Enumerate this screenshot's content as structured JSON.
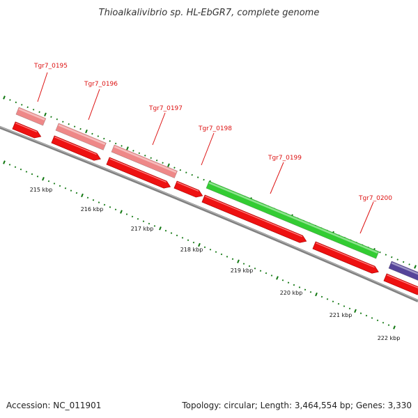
{
  "title": "Thioalkalivibrio sp. HL-EbGR7, complete genome",
  "footer": {
    "accession": "Accession: NC_011901",
    "summary": "Topology: circular; Length: 3,464,554 bp; Genes: 3,330"
  },
  "colors": {
    "gene_label": "#dd1111",
    "cds_red": "#ee1111",
    "feature_pink": "#ee8888",
    "feature_green": "#33cc33",
    "feature_purple": "#554499",
    "tick_green": "#117711",
    "backbone": "#777777"
  },
  "kbp_labels": [
    "215 kbp",
    "216 kbp",
    "217 kbp",
    "218 kbp",
    "219 kbp",
    "220 kbp",
    "221 kbp",
    "222 kbp"
  ],
  "gene_labels": [
    "Tgr7_0195",
    "Tgr7_0196",
    "Tgr7_0197",
    "Tgr7_0198",
    "Tgr7_0199",
    "Tgr7_0200"
  ]
}
